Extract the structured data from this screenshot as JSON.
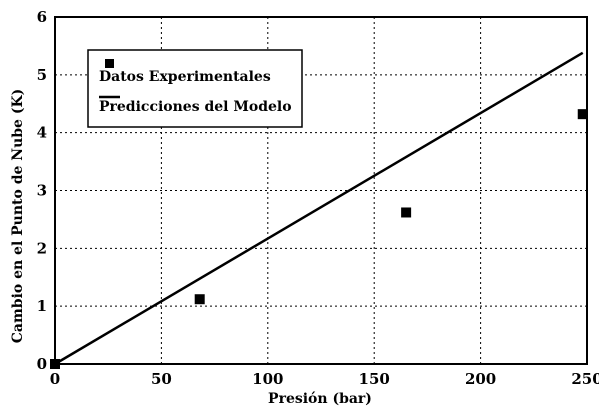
{
  "chart_data": {
    "type": "scatter",
    "xlabel": "Presión (bar)",
    "ylabel": "Cambio en el Punto de Nube (K)",
    "xlim": [
      0,
      250
    ],
    "ylim": [
      0,
      6
    ],
    "xticks": [
      "0",
      "50",
      "100",
      "150",
      "200",
      "250"
    ],
    "yticks": [
      "0",
      "1",
      "2",
      "3",
      "4",
      "5",
      "6"
    ],
    "grid": "dashed",
    "legend_placement": "top-left",
    "series": [
      {
        "name": "Datos Experimentales",
        "marker": "square",
        "x": [
          0,
          68,
          165,
          248
        ],
        "y": [
          0,
          1.12,
          2.62,
          4.32
        ]
      },
      {
        "name": "Predicciones del Modelo",
        "marker": "line",
        "x": [
          0,
          248
        ],
        "y": [
          0,
          5.38
        ]
      }
    ]
  }
}
